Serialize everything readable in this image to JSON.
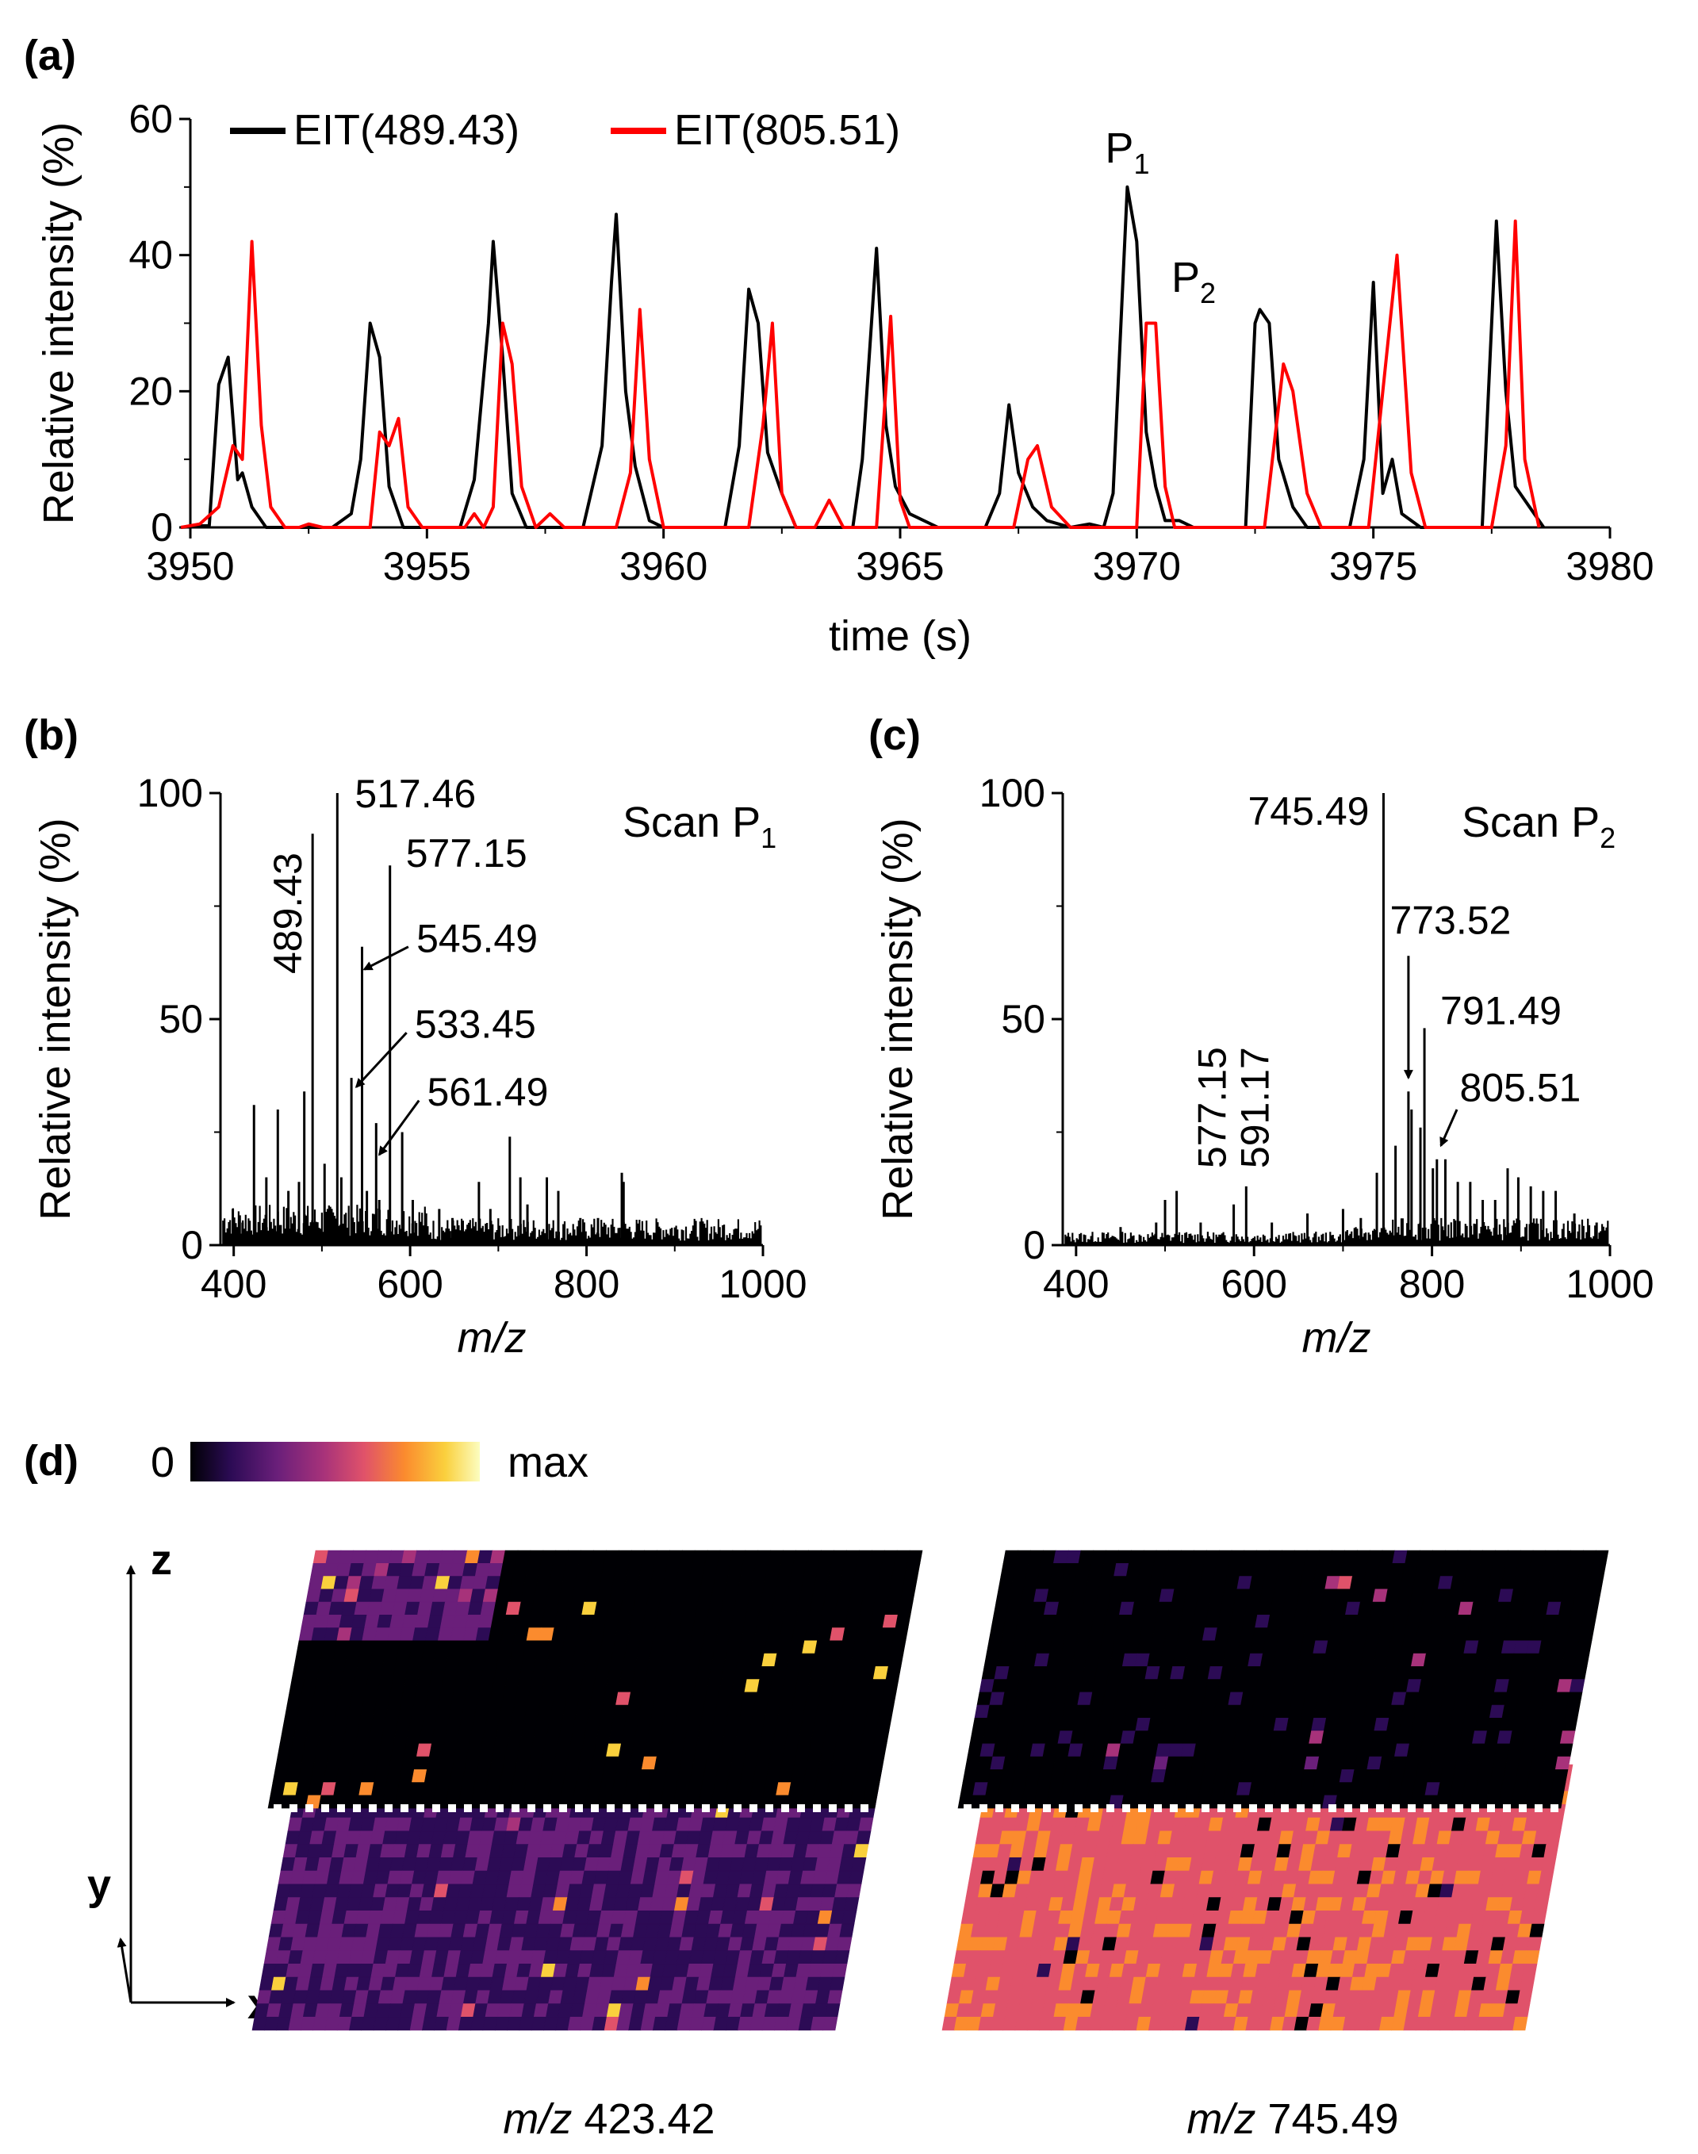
{
  "panels": {
    "a": {
      "label": "(a)"
    },
    "b": {
      "label": "(b)"
    },
    "c": {
      "label": "(c)"
    },
    "d": {
      "label": "(d)"
    }
  },
  "chart_data": [
    {
      "id": "a",
      "type": "line",
      "xlabel": "time (s)",
      "ylabel": "Relative intensity (%)",
      "xlim": [
        3950,
        3980
      ],
      "ylim": [
        0,
        60
      ],
      "xticks": [
        3950,
        3955,
        3960,
        3965,
        3970,
        3975,
        3980
      ],
      "yticks": [
        0,
        20,
        40,
        60
      ],
      "legend_position": "top-left",
      "series": [
        {
          "name": "EIT(489.43)",
          "color": "#000000",
          "points": [
            [
              3949.8,
              0
            ],
            [
              3950.4,
              0.3
            ],
            [
              3950.6,
              21
            ],
            [
              3950.8,
              25
            ],
            [
              3951.0,
              7
            ],
            [
              3951.1,
              8
            ],
            [
              3951.3,
              3
            ],
            [
              3951.6,
              0
            ],
            [
              3953.0,
              0
            ],
            [
              3953.4,
              2
            ],
            [
              3953.6,
              10
            ],
            [
              3953.8,
              30
            ],
            [
              3954.0,
              25
            ],
            [
              3954.2,
              6
            ],
            [
              3954.5,
              0
            ],
            [
              3955.7,
              0
            ],
            [
              3956.0,
              7
            ],
            [
              3956.3,
              30
            ],
            [
              3956.4,
              42
            ],
            [
              3956.6,
              25
            ],
            [
              3956.8,
              5
            ],
            [
              3957.1,
              0
            ],
            [
              3958.3,
              0
            ],
            [
              3958.7,
              12
            ],
            [
              3958.9,
              36
            ],
            [
              3959.0,
              46
            ],
            [
              3959.2,
              20
            ],
            [
              3959.4,
              9
            ],
            [
              3959.7,
              1
            ],
            [
              3960.0,
              0
            ],
            [
              3961.3,
              0
            ],
            [
              3961.6,
              12
            ],
            [
              3961.8,
              35
            ],
            [
              3962.0,
              30
            ],
            [
              3962.2,
              11
            ],
            [
              3962.5,
              5
            ],
            [
              3962.8,
              0
            ],
            [
              3964.0,
              0
            ],
            [
              3964.2,
              10
            ],
            [
              3964.5,
              41
            ],
            [
              3964.7,
              15
            ],
            [
              3964.9,
              6
            ],
            [
              3965.2,
              2
            ],
            [
              3965.8,
              0
            ],
            [
              3966.8,
              0
            ],
            [
              3967.1,
              5
            ],
            [
              3967.3,
              18
            ],
            [
              3967.5,
              8
            ],
            [
              3967.8,
              3
            ],
            [
              3968.1,
              1
            ],
            [
              3968.6,
              0
            ],
            [
              3969.0,
              0.5
            ],
            [
              3969.3,
              0
            ],
            [
              3969.5,
              5
            ],
            [
              3969.7,
              35
            ],
            [
              3969.8,
              50
            ],
            [
              3970.0,
              42
            ],
            [
              3970.2,
              14
            ],
            [
              3970.4,
              6
            ],
            [
              3970.6,
              1
            ],
            [
              3970.9,
              1
            ],
            [
              3971.2,
              0
            ],
            [
              3972.3,
              0
            ],
            [
              3972.5,
              30
            ],
            [
              3972.6,
              32
            ],
            [
              3972.8,
              30
            ],
            [
              3973.0,
              10
            ],
            [
              3973.3,
              3
            ],
            [
              3973.6,
              0
            ],
            [
              3974.5,
              0
            ],
            [
              3974.8,
              10
            ],
            [
              3975.0,
              36
            ],
            [
              3975.2,
              5
            ],
            [
              3975.4,
              10
            ],
            [
              3975.6,
              2
            ],
            [
              3976.0,
              0
            ],
            [
              3977.3,
              0
            ],
            [
              3977.6,
              45
            ],
            [
              3977.8,
              20
            ],
            [
              3978.0,
              6
            ],
            [
              3978.3,
              3
            ],
            [
              3978.6,
              0
            ]
          ]
        },
        {
          "name": "EIT(805.51)",
          "color": "#ff0000",
          "points": [
            [
              3949.8,
              0
            ],
            [
              3950.2,
              0.5
            ],
            [
              3950.6,
              3
            ],
            [
              3950.9,
              12
            ],
            [
              3951.1,
              10
            ],
            [
              3951.3,
              42
            ],
            [
              3951.5,
              15
            ],
            [
              3951.7,
              3
            ],
            [
              3952.0,
              0
            ],
            [
              3952.3,
              0
            ],
            [
              3952.5,
              0.5
            ],
            [
              3952.8,
              0
            ],
            [
              3953.8,
              0
            ],
            [
              3954.0,
              14
            ],
            [
              3954.2,
              12
            ],
            [
              3954.4,
              16
            ],
            [
              3954.6,
              3
            ],
            [
              3954.9,
              0
            ],
            [
              3955.8,
              0
            ],
            [
              3956.0,
              2
            ],
            [
              3956.2,
              0
            ],
            [
              3956.4,
              3
            ],
            [
              3956.6,
              30
            ],
            [
              3956.8,
              24
            ],
            [
              3957.0,
              6
            ],
            [
              3957.3,
              0
            ],
            [
              3957.6,
              2
            ],
            [
              3957.9,
              0
            ],
            [
              3959.0,
              0
            ],
            [
              3959.3,
              8
            ],
            [
              3959.5,
              32
            ],
            [
              3959.7,
              10
            ],
            [
              3960.0,
              0
            ],
            [
              3961.8,
              0
            ],
            [
              3962.1,
              15
            ],
            [
              3962.3,
              30
            ],
            [
              3962.5,
              5
            ],
            [
              3962.8,
              0
            ],
            [
              3963.2,
              0
            ],
            [
              3963.5,
              4
            ],
            [
              3963.8,
              0
            ],
            [
              3964.5,
              0
            ],
            [
              3964.8,
              31
            ],
            [
              3965.0,
              4
            ],
            [
              3965.2,
              0
            ],
            [
              3967.4,
              0
            ],
            [
              3967.7,
              10
            ],
            [
              3967.9,
              12
            ],
            [
              3968.2,
              3
            ],
            [
              3968.6,
              0
            ],
            [
              3970.0,
              0
            ],
            [
              3970.2,
              30
            ],
            [
              3970.4,
              30
            ],
            [
              3970.6,
              6
            ],
            [
              3970.8,
              0
            ],
            [
              3972.7,
              0
            ],
            [
              3972.9,
              12
            ],
            [
              3973.1,
              24
            ],
            [
              3973.3,
              20
            ],
            [
              3973.6,
              5
            ],
            [
              3973.9,
              0
            ],
            [
              3974.9,
              0
            ],
            [
              3975.2,
              20
            ],
            [
              3975.5,
              40
            ],
            [
              3975.8,
              8
            ],
            [
              3976.1,
              0
            ],
            [
              3977.5,
              0
            ],
            [
              3977.8,
              12
            ],
            [
              3978.0,
              45
            ],
            [
              3978.2,
              10
            ],
            [
              3978.5,
              0
            ]
          ]
        }
      ],
      "annotations": [
        {
          "text": "P",
          "sub": "1",
          "x": 3969.7,
          "y": 53
        },
        {
          "text": "P",
          "sub": "2",
          "x": 3971.1,
          "y": 34
        }
      ]
    },
    {
      "id": "b",
      "type": "bar",
      "title": "Scan P",
      "title_sub": "1",
      "xlabel": "m/z",
      "ylabel": "Relative intensity (%)",
      "xlim": [
        385,
        1000
      ],
      "ylim": [
        0,
        100
      ],
      "xticks": [
        400,
        600,
        800,
        1000
      ],
      "yticks": [
        0,
        50,
        100
      ],
      "peaks": [
        [
          399,
          8
        ],
        [
          410,
          5
        ],
        [
          423,
          31
        ],
        [
          437,
          15
        ],
        [
          450,
          30
        ],
        [
          462,
          12
        ],
        [
          474,
          14
        ],
        [
          480,
          34
        ],
        [
          489.43,
          91
        ],
        [
          503,
          18
        ],
        [
          517.46,
          100
        ],
        [
          522,
          15
        ],
        [
          533.45,
          37
        ],
        [
          545.49,
          66
        ],
        [
          551,
          12
        ],
        [
          561.49,
          27
        ],
        [
          565,
          10
        ],
        [
          577.15,
          84
        ],
        [
          591,
          25
        ],
        [
          603,
          10
        ],
        [
          633,
          8
        ],
        [
          648,
          6
        ],
        [
          678,
          14
        ],
        [
          691,
          8
        ],
        [
          713,
          24
        ],
        [
          725,
          15
        ],
        [
          733,
          9
        ],
        [
          755,
          15
        ],
        [
          768,
          12
        ],
        [
          793,
          6
        ],
        [
          813,
          6
        ],
        [
          840,
          16
        ],
        [
          842,
          14
        ]
      ],
      "labels": [
        {
          "text": "489.43",
          "x": 489.43,
          "y": 91,
          "rotated": true
        },
        {
          "text": "517.46",
          "x": 517.46,
          "y": 100
        },
        {
          "text": "577.15",
          "x": 577.15,
          "y": 84
        },
        {
          "text": "545.49",
          "x": 545.49,
          "y": 66,
          "arrow": true
        },
        {
          "text": "533.45",
          "x": 533.45,
          "y": 37,
          "arrow": true
        },
        {
          "text": "561.49",
          "x": 561.49,
          "y": 27,
          "arrow": true
        }
      ]
    },
    {
      "id": "c",
      "type": "bar",
      "title": "Scan P",
      "title_sub": "2",
      "xlabel": "m/z",
      "ylabel": "Relative intensity (%)",
      "xlim": [
        385,
        1000
      ],
      "ylim": [
        0,
        100
      ],
      "xticks": [
        400,
        600,
        800,
        1000
      ],
      "yticks": [
        0,
        50,
        100
      ],
      "peaks": [
        [
          450,
          4
        ],
        [
          490,
          5
        ],
        [
          500,
          10
        ],
        [
          513,
          12
        ],
        [
          540,
          5
        ],
        [
          577.15,
          9
        ],
        [
          591.17,
          13
        ],
        [
          620,
          5
        ],
        [
          660,
          7
        ],
        [
          700,
          8
        ],
        [
          720,
          6
        ],
        [
          738,
          16
        ],
        [
          745.49,
          100
        ],
        [
          759,
          22
        ],
        [
          773.52,
          34
        ],
        [
          777,
          30
        ],
        [
          787,
          26
        ],
        [
          791.49,
          48
        ],
        [
          801,
          17
        ],
        [
          805.51,
          19
        ],
        [
          815,
          19
        ],
        [
          829,
          14
        ],
        [
          843,
          14
        ],
        [
          857,
          10
        ],
        [
          871,
          10
        ],
        [
          885,
          17
        ],
        [
          897,
          15
        ],
        [
          911,
          13
        ],
        [
          925,
          12
        ],
        [
          939,
          12
        ],
        [
          960,
          7
        ],
        [
          985,
          5
        ]
      ],
      "labels": [
        {
          "text": "745.49",
          "x": 745.49,
          "y": 100
        },
        {
          "text": "773.52",
          "x": 773.52,
          "y": 34,
          "arrow": true
        },
        {
          "text": "791.49",
          "x": 791.49,
          "y": 48
        },
        {
          "text": "805.51",
          "x": 805.51,
          "y": 19,
          "arrow": true
        },
        {
          "text": "577.15",
          "x": 577.15,
          "y": 9,
          "rotated": true
        },
        {
          "text": "591.17",
          "x": 591.17,
          "y": 13,
          "rotated": true
        }
      ]
    },
    {
      "id": "d",
      "type": "heatmap",
      "colorbar": {
        "min_label": "0",
        "max_label": "max",
        "colors": [
          "#000004",
          "#2c0b55",
          "#6a1f7a",
          "#a7327a",
          "#e0526a",
          "#fb8b2e",
          "#fad03d",
          "#fcfdbf"
        ]
      },
      "axes": {
        "z": "z",
        "y": "y",
        "x": "x"
      },
      "maps": [
        {
          "prefix": "m/z",
          "mz": "423.42",
          "upper_layer": "dark with sparse bright hotspots, brighter top-left",
          "lower_layer": "uniform dark purple"
        },
        {
          "prefix": "m/z",
          "mz": "745.49",
          "upper_layer": "uniformly dark",
          "lower_layer": "bright orange, brightest top-left, scattered dark patches"
        }
      ]
    }
  ]
}
